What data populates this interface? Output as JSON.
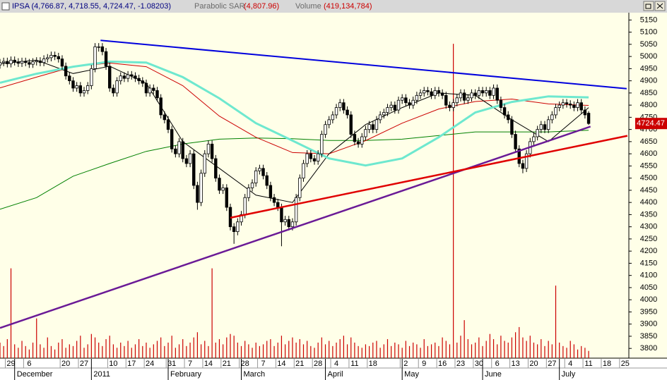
{
  "chart_data": {
    "type": "candlestick",
    "title": "IPSA (4,766.87, 4,718.55, 4,724.47, -1.08203)",
    "sar_name": "Parabolic SAR",
    "sar_value": "(4,807.96)",
    "volume_name": "Volume",
    "volume_value": "(419,134,784)",
    "xlim": [
      0,
      172
    ],
    "ylim": [
      3760,
      5180
    ],
    "yticks": [
      3800,
      3850,
      3900,
      3950,
      4000,
      4050,
      4100,
      4150,
      4200,
      4250,
      4300,
      4350,
      4400,
      4450,
      4500,
      4550,
      4600,
      4650,
      4700,
      4750,
      4800,
      4850,
      4900,
      4950,
      5000,
      5050,
      5100,
      5150
    ],
    "xticks": [
      {
        "value": 3,
        "label": "29"
      },
      {
        "value": 8,
        "label": "6"
      },
      {
        "value": 18,
        "label": "20"
      },
      {
        "value": 23,
        "label": "27"
      },
      {
        "value": 31,
        "label": "10"
      },
      {
        "value": 36,
        "label": "17"
      },
      {
        "value": 41,
        "label": "24"
      },
      {
        "value": 47,
        "label": "31"
      },
      {
        "value": 52,
        "label": "7"
      },
      {
        "value": 57,
        "label": "14"
      },
      {
        "value": 62,
        "label": "21"
      },
      {
        "value": 67,
        "label": "28"
      },
      {
        "value": 72,
        "label": "7"
      },
      {
        "value": 77,
        "label": "14"
      },
      {
        "value": 82,
        "label": "21"
      },
      {
        "value": 87,
        "label": "28"
      },
      {
        "value": 92,
        "label": "4"
      },
      {
        "value": 97,
        "label": "11"
      },
      {
        "value": 102,
        "label": "18"
      },
      {
        "value": 111,
        "label": "2"
      },
      {
        "value": 116,
        "label": "9"
      },
      {
        "value": 121,
        "label": "16"
      },
      {
        "value": 126,
        "label": "23"
      },
      {
        "value": 131,
        "label": "30"
      },
      {
        "value": 136,
        "label": "6"
      },
      {
        "value": 141,
        "label": "13"
      },
      {
        "value": 146,
        "label": "20"
      },
      {
        "value": 151,
        "label": "27"
      },
      {
        "value": 156,
        "label": "4"
      },
      {
        "value": 161,
        "label": "11"
      },
      {
        "value": 166,
        "label": "18"
      },
      {
        "value": 171,
        "label": "25"
      }
    ],
    "month_ticks": [
      {
        "value": 4,
        "label": "December"
      },
      {
        "value": 25,
        "label": "2011"
      },
      {
        "value": 46,
        "label": "February"
      },
      {
        "value": 66,
        "label": "March"
      },
      {
        "value": 89,
        "label": "April"
      },
      {
        "value": 110,
        "label": "May"
      },
      {
        "value": 132,
        "label": "June"
      },
      {
        "value": 153,
        "label": "July"
      }
    ],
    "x": [
      0,
      1,
      2,
      3,
      4,
      5,
      6,
      7,
      8,
      9,
      10,
      11,
      12,
      13,
      14,
      15,
      16,
      17,
      18,
      19,
      20,
      21,
      22,
      23,
      24,
      25,
      26,
      27,
      28,
      29,
      30,
      31,
      32,
      33,
      34,
      35,
      36,
      37,
      38,
      39,
      40,
      41,
      42,
      43,
      44,
      45,
      46,
      47,
      48,
      49,
      50,
      51,
      52,
      53,
      54,
      55,
      56,
      57,
      58,
      59,
      60,
      61,
      62,
      63,
      64,
      65,
      66,
      67,
      68,
      69,
      70,
      71,
      72,
      73,
      74,
      75,
      76,
      77,
      78,
      79,
      80,
      81,
      82,
      83,
      84,
      85,
      86,
      87,
      88,
      89,
      90,
      91,
      92,
      93,
      94,
      95,
      96,
      97,
      98,
      99,
      100,
      101,
      102,
      103,
      104,
      105,
      106,
      107,
      108,
      109,
      110,
      111,
      112,
      113,
      114,
      115,
      116,
      117,
      118,
      119,
      120,
      121,
      122,
      123,
      124,
      125,
      126,
      127,
      128,
      129,
      130,
      131,
      132,
      133,
      134,
      135,
      136,
      137,
      138,
      139,
      140,
      141,
      142,
      143,
      144,
      145,
      146,
      147,
      148,
      149,
      150,
      151,
      152,
      153,
      154,
      155,
      156,
      157,
      158,
      159,
      160,
      161
    ],
    "open": [
      4965,
      4975,
      4980,
      4970,
      4985,
      4978,
      4972,
      4980,
      4975,
      4968,
      4978,
      4982,
      4975,
      4990,
      4995,
      5005,
      5000,
      4990,
      4960,
      4920,
      4900,
      4870,
      4880,
      4850,
      4860,
      4880,
      4950,
      5040,
      5040,
      5020,
      4960,
      4870,
      4850,
      4900,
      4920,
      4910,
      4925,
      4920,
      4910,
      4900,
      4890,
      4850,
      4870,
      4860,
      4830,
      4760,
      4740,
      4700,
      4620,
      4600,
      4650,
      4580,
      4560,
      4600,
      4470,
      4400,
      4520,
      4600,
      4640,
      4580,
      4500,
      4450,
      4460,
      4380,
      4300,
      4280,
      4320,
      4350,
      4420,
      4460,
      4480,
      4530,
      4540,
      4510,
      4470,
      4420,
      4400,
      4380,
      4320,
      4330,
      4300,
      4320,
      4420,
      4500,
      4560,
      4600,
      4580,
      4570,
      4600,
      4680,
      4720,
      4740,
      4760,
      4790,
      4810,
      4780,
      4760,
      4680,
      4650,
      4640,
      4670,
      4700,
      4720,
      4700,
      4740,
      4760,
      4770,
      4790,
      4800,
      4780,
      4820,
      4830,
      4810,
      4800,
      4820,
      4840,
      4850,
      4860,
      4855,
      4840,
      4860,
      4850,
      4840,
      4800,
      4790,
      4810,
      4830,
      4850,
      4820,
      4830,
      4850,
      4840,
      4860,
      4850,
      4860,
      4840,
      4870,
      4820,
      4790,
      4760,
      4740,
      4680,
      4620,
      4560,
      4540,
      4600,
      4650,
      4670,
      4700,
      4720,
      4700,
      4740,
      4760,
      4790,
      4800,
      4810,
      4805,
      4800,
      4790,
      4810,
      4780,
      4766.87
    ],
    "high": [
      4990,
      4995,
      4995,
      5000,
      5000,
      4993,
      4995,
      4995,
      4990,
      4993,
      4997,
      4997,
      5005,
      5010,
      5020,
      5020,
      5015,
      5005,
      4975,
      4935,
      4915,
      4895,
      4895,
      4875,
      4895,
      4965,
      5055,
      5055,
      5055,
      5035,
      4975,
      4885,
      4915,
      4935,
      4935,
      4940,
      4940,
      4935,
      4925,
      4915,
      4905,
      4885,
      4885,
      4875,
      4845,
      4775,
      4755,
      4715,
      4635,
      4665,
      4665,
      4595,
      4615,
      4615,
      4485,
      4535,
      4615,
      4655,
      4655,
      4595,
      4515,
      4475,
      4475,
      4395,
      4315,
      4335,
      4365,
      4435,
      4475,
      4495,
      4545,
      4555,
      4555,
      4525,
      4485,
      4435,
      4415,
      4395,
      4345,
      4345,
      4335,
      4435,
      4515,
      4575,
      4615,
      4615,
      4595,
      4615,
      4695,
      4735,
      4755,
      4775,
      4805,
      4825,
      4825,
      4795,
      4775,
      4695,
      4665,
      4685,
      4715,
      4735,
      4735,
      4755,
      4775,
      4785,
      4805,
      4815,
      4815,
      4835,
      4845,
      4845,
      4825,
      4835,
      4855,
      4865,
      4875,
      4875,
      4870,
      4875,
      4875,
      4865,
      4855,
      4815,
      4825,
      4845,
      4865,
      4865,
      4845,
      4865,
      4865,
      4875,
      4875,
      4875,
      4875,
      4885,
      4885,
      4835,
      4805,
      4775,
      4755,
      4695,
      4635,
      4575,
      4615,
      4665,
      4685,
      4715,
      4735,
      4735,
      4755,
      4775,
      4805,
      4815,
      4825,
      4825,
      4820,
      4815,
      4825,
      4825,
      4795,
      4775
    ],
    "low": [
      4950,
      4960,
      4955,
      4955,
      4963,
      4957,
      4957,
      4960,
      4953,
      4953,
      4963,
      4960,
      4960,
      4975,
      4980,
      4985,
      4975,
      4945,
      4905,
      4885,
      4855,
      4855,
      4835,
      4835,
      4845,
      4865,
      4935,
      5020,
      5005,
      4945,
      4855,
      4835,
      4835,
      4885,
      4895,
      4895,
      4905,
      4895,
      4885,
      4875,
      4835,
      4835,
      4845,
      4815,
      4745,
      4725,
      4685,
      4605,
      4585,
      4585,
      4565,
      4545,
      4545,
      4455,
      4370,
      4385,
      4505,
      4585,
      4565,
      4485,
      4435,
      4435,
      4365,
      4285,
      4230,
      4265,
      4305,
      4335,
      4405,
      4445,
      4465,
      4515,
      4495,
      4455,
      4405,
      4385,
      4365,
      4220,
      4305,
      4285,
      4285,
      4305,
      4405,
      4485,
      4545,
      4565,
      4555,
      4555,
      4585,
      4665,
      4705,
      4725,
      4745,
      4775,
      4765,
      4745,
      4665,
      4635,
      4625,
      4625,
      4655,
      4685,
      4685,
      4685,
      4725,
      4745,
      4755,
      4775,
      4765,
      4765,
      4805,
      4795,
      4785,
      4785,
      4805,
      4825,
      4835,
      4840,
      4825,
      4825,
      4835,
      4825,
      4785,
      4775,
      4775,
      4795,
      4815,
      4805,
      4805,
      4815,
      4825,
      4825,
      4835,
      4835,
      4825,
      4825,
      4805,
      4775,
      4745,
      4725,
      4665,
      4605,
      4545,
      4520,
      4525,
      4585,
      4635,
      4655,
      4685,
      4685,
      4685,
      4725,
      4745,
      4775,
      4785,
      4790,
      4785,
      4775,
      4775,
      4765,
      4745,
      4718.55
    ],
    "close": [
      4975,
      4980,
      4970,
      4985,
      4978,
      4972,
      4980,
      4975,
      4968,
      4978,
      4982,
      4975,
      4990,
      4995,
      5005,
      5000,
      4990,
      4960,
      4920,
      4900,
      4870,
      4880,
      4850,
      4860,
      4880,
      4950,
      5040,
      5040,
      5020,
      4960,
      4870,
      4850,
      4900,
      4920,
      4910,
      4925,
      4920,
      4910,
      4900,
      4890,
      4850,
      4870,
      4860,
      4830,
      4760,
      4740,
      4700,
      4620,
      4600,
      4650,
      4580,
      4560,
      4600,
      4470,
      4400,
      4520,
      4600,
      4640,
      4580,
      4500,
      4450,
      4460,
      4380,
      4300,
      4280,
      4320,
      4350,
      4420,
      4460,
      4480,
      4530,
      4540,
      4510,
      4470,
      4420,
      4400,
      4380,
      4320,
      4330,
      4300,
      4320,
      4420,
      4500,
      4560,
      4600,
      4580,
      4570,
      4600,
      4680,
      4720,
      4740,
      4760,
      4790,
      4810,
      4780,
      4760,
      4680,
      4650,
      4640,
      4670,
      4700,
      4720,
      4700,
      4740,
      4760,
      4770,
      4790,
      4800,
      4780,
      4820,
      4830,
      4810,
      4800,
      4820,
      4840,
      4850,
      4860,
      4855,
      4840,
      4860,
      4850,
      4840,
      4800,
      4790,
      4810,
      4830,
      4850,
      4820,
      4830,
      4850,
      4840,
      4860,
      4850,
      4860,
      4840,
      4870,
      4820,
      4790,
      4760,
      4740,
      4680,
      4620,
      4560,
      4540,
      4600,
      4650,
      4670,
      4700,
      4720,
      4700,
      4740,
      4760,
      4790,
      4800,
      4810,
      4805,
      4800,
      4790,
      4810,
      4780,
      4760,
      4724.47
    ],
    "up_color": "#ffffff",
    "down_color": "#000000",
    "volume": {
      "color": "#cc0000",
      "ylim": [
        0,
        20000000000.0
      ],
      "values": [
        900000000.0,
        700000000.0,
        1100000000.0,
        5200000000.0,
        800000000.0,
        600000000.0,
        1000000000.0,
        700000000.0,
        500000000.0,
        900000000.0,
        2300000000.0,
        800000000.0,
        600000000.0,
        1200000000.0,
        700000000.0,
        500000000.0,
        900000000.0,
        1100000000.0,
        600000000.0,
        800000000.0,
        700000000.0,
        1000000000.0,
        1300000000.0,
        600000000.0,
        800000000.0,
        1400000000.0,
        1200000000.0,
        900000000.0,
        700000000.0,
        1100000000.0,
        1300000000.0,
        800000000.0,
        600000000.0,
        900000000.0,
        700000000.0,
        1000000000.0,
        600000000.0,
        800000000.0,
        1100000000.0,
        700000000.0,
        900000000.0,
        600000000.0,
        800000000.0,
        1000000000.0,
        1200000000.0,
        700000000.0,
        900000000.0,
        1300000000.0,
        600000000.0,
        800000000.0,
        1100000000.0,
        700000000.0,
        900000000.0,
        1200000000.0,
        1500000000.0,
        800000000.0,
        1000000000.0,
        700000000.0,
        5200000000.0,
        900000000.0,
        1100000000.0,
        800000000.0,
        1200000000.0,
        1400000000.0,
        1300000000.0,
        900000000.0,
        700000000.0,
        1000000000.0,
        800000000.0,
        600000000.0,
        900000000.0,
        700000000.0,
        800000000.0,
        1000000000.0,
        1100000000.0,
        700000000.0,
        900000000.0,
        1300000000.0,
        800000000.0,
        1000000000.0,
        1200000000.0,
        900000000.0,
        1100000000.0,
        800000000.0,
        1000000000.0,
        700000000.0,
        600000000.0,
        900000000.0,
        1200000000.0,
        800000000.0,
        1000000000.0,
        700000000.0,
        900000000.0,
        1100000000.0,
        1300000000.0,
        800000000.0,
        1200000000.0,
        900000000.0,
        700000000.0,
        600000000.0,
        800000000.0,
        700000000.0,
        900000000.0,
        1000000000.0,
        600000000.0,
        800000000.0,
        1100000000.0,
        700000000.0,
        900000000.0,
        800000000.0,
        600000000.0,
        1000000000.0,
        700000000.0,
        900000000.0,
        800000000.0,
        600000000.0,
        1100000000.0,
        700000000.0,
        800000000.0,
        900000000.0,
        700000000.0,
        1200000000.0,
        1000000000.0,
        800000000.0,
        18200000000.0,
        900000000.0,
        1300000000.0,
        2200000000.0,
        1100000000.0,
        800000000.0,
        900000000.0,
        1200000000.0,
        700000000.0,
        1000000000.0,
        1400000000.0,
        1100000000.0,
        800000000.0,
        1300000000.0,
        1000000000.0,
        900000000.0,
        1200000000.0,
        1500000000.0,
        1800000000.0,
        1200000000.0,
        1000000000.0,
        1300000000.0,
        900000000.0,
        800000000.0,
        1100000000.0,
        700000000.0,
        1000000000.0,
        800000000.0,
        4200000000.0,
        900000000.0,
        700000000.0,
        600000000.0,
        1000000000.0,
        800000000.0,
        500000000.0,
        700000000.0,
        600000000.0,
        419134784
      ]
    },
    "overlays": [
      {
        "color": "#008000",
        "width": 1,
        "x": [
          0,
          10,
          20,
          30,
          40,
          50,
          60,
          70,
          80,
          90,
          100,
          110,
          120,
          130,
          140,
          150,
          161
        ],
        "values": [
          4372,
          4420,
          4508,
          4560,
          4610,
          4640,
          4660,
          4665,
          4662,
          4655,
          4655,
          4660,
          4675,
          4690,
          4690,
          4690,
          4697
        ]
      },
      {
        "color": "#cc0000",
        "width": 1,
        "x": [
          0,
          10,
          20,
          30,
          40,
          50,
          60,
          70,
          80,
          90,
          100,
          110,
          120,
          130,
          140,
          150,
          161
        ],
        "values": [
          4871,
          4915,
          4958,
          4973,
          4958,
          4880,
          4755,
          4668,
          4605,
          4600,
          4654,
          4726,
          4784,
          4815,
          4825,
          4805,
          4799
        ]
      },
      {
        "color": "#000000",
        "width": 1,
        "x": [
          0,
          10,
          20,
          30,
          40,
          50,
          60,
          70,
          80,
          90,
          100,
          110,
          120,
          130,
          140,
          150,
          161
        ],
        "values": [
          4970,
          4985,
          4930,
          4960,
          4890,
          4650,
          4540,
          4430,
          4400,
          4600,
          4720,
          4790,
          4850,
          4840,
          4740,
          4650,
          4790
        ]
      },
      {
        "color": "#6ee8cf",
        "width": 3,
        "x": [
          0,
          10,
          20,
          30,
          40,
          50,
          60,
          70,
          80,
          90,
          100,
          110,
          120,
          130,
          140,
          150,
          161
        ],
        "values": [
          4892,
          4929,
          4958,
          4979,
          4975,
          4915,
          4828,
          4726,
          4654,
          4581,
          4552,
          4581,
          4668,
          4770,
          4813,
          4836,
          4832
        ]
      }
    ],
    "trendlines": [
      {
        "color": "#0000dd",
        "width": 2,
        "x": [
          27.5,
          171.4
        ],
        "values": [
          5066,
          4868
        ]
      },
      {
        "color": "#6a1a96",
        "width": 2.5,
        "x": [
          0,
          161.5
        ],
        "values": [
          3884,
          4712
        ]
      },
      {
        "color": "#e00000",
        "width": 2.5,
        "x": [
          63,
          171.6
        ],
        "values": [
          4337,
          4674
        ]
      }
    ],
    "price_label_color": "#cc0000"
  }
}
